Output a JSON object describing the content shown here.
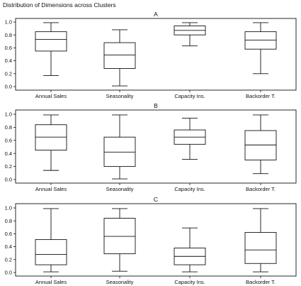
{
  "title": "Distribution of Dimensions across Clusters",
  "chart_data": [
    {
      "type": "boxplot",
      "title": "A",
      "categories": [
        "Annual Sales",
        "Seasonality",
        "Capacity Ins.",
        "Backorder T."
      ],
      "ylim": [
        0,
        1
      ],
      "yticks": [
        "0.0",
        "0.2",
        "0.4",
        "0.6",
        "0.8",
        "1.0"
      ],
      "grid": false,
      "boxes": [
        {
          "min": 0.17,
          "q1": 0.55,
          "median": 0.73,
          "q3": 0.85,
          "max": 0.99
        },
        {
          "min": 0.01,
          "q1": 0.28,
          "median": 0.49,
          "q3": 0.68,
          "max": 0.88
        },
        {
          "min": 0.63,
          "q1": 0.8,
          "median": 0.87,
          "q3": 0.94,
          "max": 0.99
        },
        {
          "min": 0.2,
          "q1": 0.58,
          "median": 0.72,
          "q3": 0.85,
          "max": 0.99
        }
      ]
    },
    {
      "type": "boxplot",
      "title": "B",
      "categories": [
        "Annual Sales",
        "Seasonality",
        "Capacity Ins.",
        "Backorder T."
      ],
      "ylim": [
        0,
        1
      ],
      "yticks": [
        "0.0",
        "0.2",
        "0.4",
        "0.6",
        "0.8",
        "1.0"
      ],
      "grid": false,
      "boxes": [
        {
          "min": 0.14,
          "q1": 0.45,
          "median": 0.65,
          "q3": 0.84,
          "max": 0.99
        },
        {
          "min": 0.01,
          "q1": 0.2,
          "median": 0.42,
          "q3": 0.65,
          "max": 0.99
        },
        {
          "min": 0.31,
          "q1": 0.54,
          "median": 0.65,
          "q3": 0.76,
          "max": 0.94
        },
        {
          "min": 0.09,
          "q1": 0.3,
          "median": 0.53,
          "q3": 0.75,
          "max": 0.99
        }
      ]
    },
    {
      "type": "boxplot",
      "title": "C",
      "categories": [
        "Annual Sales",
        "Seasonality",
        "Capacity Ins.",
        "Backorder T."
      ],
      "ylim": [
        0,
        1
      ],
      "yticks": [
        "0.0",
        "0.2",
        "0.4",
        "0.6",
        "0.8",
        "1.0"
      ],
      "grid": false,
      "boxes": [
        {
          "min": 0.01,
          "q1": 0.12,
          "median": 0.28,
          "q3": 0.51,
          "max": 0.99
        },
        {
          "min": 0.02,
          "q1": 0.29,
          "median": 0.56,
          "q3": 0.84,
          "max": 0.99
        },
        {
          "min": 0.01,
          "q1": 0.12,
          "median": 0.25,
          "q3": 0.38,
          "max": 0.69
        },
        {
          "min": 0.01,
          "q1": 0.14,
          "median": 0.35,
          "q3": 0.62,
          "max": 0.99
        }
      ]
    }
  ]
}
